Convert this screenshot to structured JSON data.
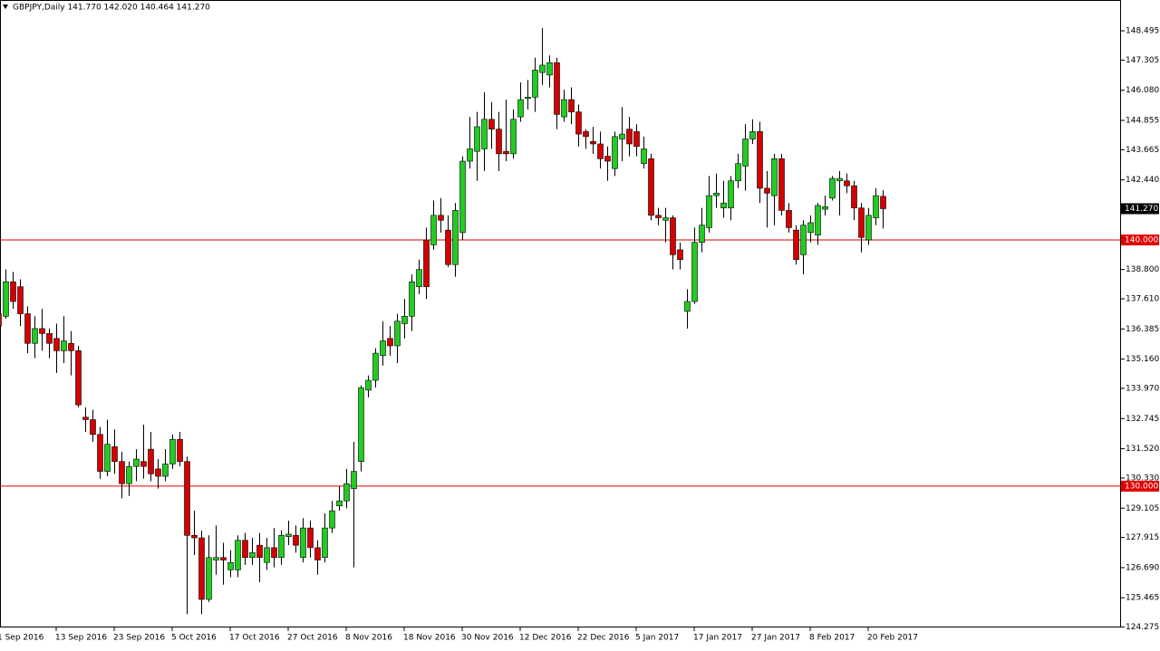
{
  "chart_data": {
    "type": "candlestick",
    "title": "GBPJPY,Daily  141.770 142.020 140.464 141.270",
    "categories": [
      "1 Sep 2016",
      null,
      null,
      null,
      null,
      null,
      null,
      null,
      "13 Sep 2016",
      null,
      null,
      null,
      null,
      null,
      null,
      null,
      "23 Sep 2016",
      null,
      null,
      null,
      null,
      null,
      null,
      null,
      "5 Oct 2016",
      null,
      null,
      null,
      null,
      null,
      null,
      null,
      "17 Oct 2016",
      null,
      null,
      null,
      null,
      null,
      null,
      null,
      "27 Oct 2016",
      null,
      null,
      null,
      null,
      null,
      null,
      null,
      "8 Nov 2016",
      null,
      null,
      null,
      null,
      null,
      null,
      null,
      "18 Nov 2016",
      null,
      null,
      null,
      null,
      null,
      null,
      null,
      "30 Nov 2016",
      null,
      null,
      null,
      null,
      null,
      null,
      null,
      "12 Dec 2016",
      null,
      null,
      null,
      null,
      null,
      null,
      null,
      "22 Dec 2016",
      null,
      null,
      null,
      null,
      null,
      null,
      null,
      "5 Jan 2017",
      null,
      null,
      null,
      null,
      null,
      null,
      null,
      "17 Jan 2017",
      null,
      null,
      null,
      null,
      null,
      null,
      null,
      "27 Jan 2017",
      null,
      null,
      null,
      null,
      null,
      null,
      null,
      "8 Feb 2017",
      null,
      null,
      null,
      null,
      null,
      null,
      null,
      "20 Feb 2017",
      null,
      null
    ],
    "open": [
      137.0,
      136.9,
      138.3,
      138.1,
      137.0,
      135.8,
      136.4,
      136.2,
      136.0,
      135.5,
      135.8,
      135.5,
      132.8,
      132.7,
      132.1,
      130.6,
      131.6,
      131.0,
      130.1,
      130.8,
      131.0,
      131.5,
      130.7,
      130.4,
      130.9,
      131.9,
      131.0,
      128.0,
      127.9,
      125.4,
      127.0,
      127.1,
      126.6,
      126.6,
      127.8,
      127.1,
      127.6,
      126.9,
      127.5,
      127.1,
      127.95,
      128.0,
      127.1,
      128.3,
      127.5,
      127.1,
      128.3,
      129.2,
      129.4,
      129.9,
      131.0,
      133.9,
      134.3,
      135.3,
      136.0,
      135.7,
      136.6,
      136.9,
      138.1,
      140.0,
      139.8,
      141.0,
      140.4,
      139.0,
      140.3,
      143.2,
      143.6,
      143.7,
      144.9,
      144.5,
      143.6,
      143.5,
      145.0,
      145.75,
      145.8,
      146.8,
      146.7,
      147.2,
      145.0,
      145.7,
      145.2,
      144.4,
      144.0,
      143.9,
      143.4,
      142.9,
      144.1,
      144.5,
      144.4,
      143.1,
      143.3,
      141.0,
      140.8,
      140.9,
      139.6,
      137.1,
      137.5,
      139.9,
      140.5,
      141.8,
      141.3,
      141.3,
      142.4,
      143.0,
      144.1,
      144.4,
      142.1,
      141.8,
      143.3,
      141.2,
      140.4,
      139.4,
      140.3,
      140.2,
      141.25,
      141.7,
      142.4,
      142.4,
      142.2,
      141.3,
      140.0,
      140.9,
      141.77
    ],
    "high": [
      138.3,
      138.8,
      138.7,
      138.4,
      137.3,
      136.9,
      137.2,
      136.4,
      136.6,
      136.9,
      136.3,
      135.7,
      133.2,
      133.1,
      132.4,
      132.7,
      132.3,
      131.4,
      131.0,
      131.5,
      132.5,
      132.2,
      131.1,
      131.5,
      132.1,
      132.2,
      131.2,
      129.0,
      128.2,
      128.0,
      128.4,
      127.7,
      127.4,
      128.0,
      128.1,
      127.9,
      128.1,
      127.9,
      128.3,
      128.2,
      128.6,
      128.4,
      128.7,
      128.6,
      127.8,
      128.9,
      129.4,
      130.0,
      130.7,
      131.8,
      134.1,
      134.5,
      135.6,
      136.7,
      136.5,
      137.0,
      137.6,
      138.6,
      139.2,
      140.5,
      141.6,
      141.7,
      141.0,
      141.5,
      143.4,
      145.0,
      145.2,
      146.0,
      145.6,
      145.2,
      145.7,
      145.3,
      146.4,
      146.5,
      147.4,
      148.6,
      147.5,
      147.4,
      146.1,
      146.2,
      145.5,
      144.5,
      144.6,
      144.4,
      143.8,
      144.4,
      145.4,
      145.0,
      144.7,
      144.2,
      143.5,
      141.3,
      141.3,
      141.0,
      139.9,
      138.0,
      140.5,
      141.3,
      142.6,
      142.7,
      142.4,
      142.6,
      143.5,
      144.7,
      144.9,
      144.8,
      142.8,
      143.5,
      143.5,
      141.5,
      140.6,
      140.8,
      141.0,
      141.5,
      141.8,
      142.6,
      142.8,
      142.7,
      142.4,
      141.5,
      141.3,
      142.1,
      142.02
    ],
    "low": [
      135.8,
      136.8,
      137.2,
      136.5,
      135.4,
      135.2,
      135.5,
      135.2,
      134.6,
      135.0,
      134.5,
      133.2,
      132.2,
      131.8,
      130.3,
      130.4,
      130.5,
      129.5,
      129.6,
      130.2,
      130.3,
      130.2,
      129.9,
      130.2,
      130.7,
      130.8,
      124.8,
      127.2,
      124.8,
      125.3,
      126.4,
      126.0,
      126.3,
      126.3,
      126.8,
      126.8,
      126.1,
      126.6,
      126.7,
      126.8,
      127.6,
      127.3,
      126.9,
      127.1,
      126.4,
      126.9,
      128.1,
      129.0,
      129.1,
      126.7,
      130.6,
      133.6,
      134.0,
      134.9,
      135.3,
      135.0,
      136.0,
      136.3,
      137.8,
      137.6,
      139.6,
      140.3,
      138.9,
      138.5,
      140.0,
      142.9,
      142.4,
      142.8,
      143.7,
      142.8,
      143.2,
      143.3,
      144.8,
      145.3,
      145.2,
      146.3,
      146.2,
      144.5,
      144.8,
      144.7,
      143.8,
      143.7,
      143.5,
      142.9,
      142.4,
      142.6,
      143.2,
      143.4,
      143.4,
      142.9,
      140.8,
      140.6,
      139.9,
      138.8,
      138.8,
      136.4,
      137.4,
      139.5,
      140.3,
      141.3,
      140.9,
      140.8,
      142.1,
      142.0,
      143.9,
      141.5,
      140.5,
      140.6,
      141.0,
      140.3,
      139.0,
      138.6,
      139.9,
      139.8,
      141.0,
      141.6,
      141.0,
      141.9,
      140.8,
      139.5,
      139.8,
      140.6,
      140.464
    ],
    "close": [
      136.5,
      138.3,
      137.5,
      137.0,
      135.8,
      136.4,
      136.2,
      135.8,
      135.5,
      135.9,
      135.5,
      133.3,
      132.7,
      132.1,
      130.6,
      131.7,
      131.0,
      130.1,
      130.8,
      131.1,
      130.8,
      130.5,
      130.4,
      130.9,
      131.9,
      131.0,
      128.0,
      127.9,
      125.4,
      127.1,
      127.1,
      127.0,
      126.9,
      127.8,
      127.1,
      127.3,
      127.1,
      127.5,
      127.1,
      128.0,
      128.05,
      127.6,
      128.3,
      127.5,
      127.0,
      128.3,
      129.0,
      129.4,
      130.1,
      130.6,
      134.0,
      134.3,
      135.4,
      135.9,
      135.7,
      136.7,
      136.9,
      138.3,
      138.8,
      138.1,
      141.0,
      140.8,
      139.0,
      141.2,
      143.2,
      143.7,
      144.6,
      144.9,
      144.5,
      143.5,
      143.5,
      144.9,
      145.7,
      145.8,
      146.9,
      147.1,
      147.2,
      145.1,
      145.7,
      145.2,
      144.3,
      144.2,
      143.9,
      143.3,
      143.2,
      144.2,
      144.3,
      143.9,
      143.8,
      143.7,
      141.0,
      140.9,
      140.9,
      139.4,
      139.2,
      137.5,
      139.9,
      140.6,
      141.8,
      141.9,
      141.5,
      142.4,
      143.1,
      144.1,
      144.4,
      142.1,
      141.9,
      143.3,
      141.2,
      140.5,
      139.2,
      140.6,
      140.7,
      141.4,
      141.35,
      142.5,
      142.5,
      142.2,
      141.3,
      140.1,
      141.0,
      141.8,
      141.27
    ],
    "up_color": "#22cc22",
    "down_color": "#d40000",
    "wick_color": "#000000",
    "ylim": [
      124.26,
      149.71
    ],
    "yticks": [
      148.495,
      147.305,
      {
        "value": 146.08,
        "label": "146.080"
      },
      144.855,
      143.665,
      {
        "value": 142.44,
        "label": "142.440"
      },
      {
        "value": 138.8,
        "label": "138.800"
      },
      {
        "value": 137.61,
        "label": "137.610"
      },
      136.385,
      {
        "value": 135.16,
        "label": "135.160"
      },
      {
        "value": 133.97,
        "label": "133.970"
      },
      132.745,
      {
        "value": 131.52,
        "label": "131.520"
      },
      {
        "value": 130.33,
        "label": "130.330"
      },
      129.105,
      127.915,
      {
        "value": 126.69,
        "label": "126.690"
      },
      125.465,
      124.275
    ],
    "hlines": [
      {
        "value": 140,
        "label": "140.000",
        "color": "#e00000"
      },
      {
        "value": 130,
        "label": "130.000",
        "color": "#e00000"
      }
    ],
    "current_price": {
      "value": 141.27,
      "label": "141.270"
    },
    "grid": false
  }
}
